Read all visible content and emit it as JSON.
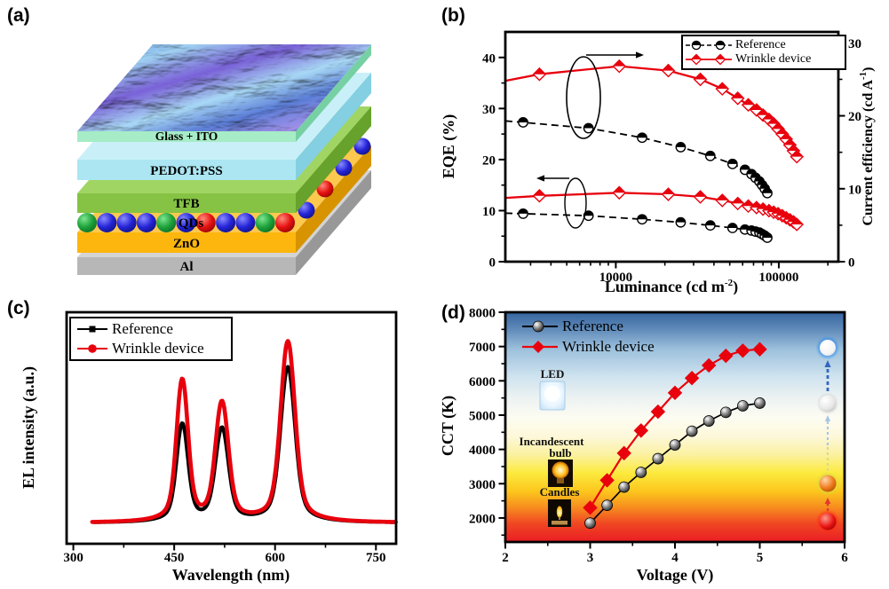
{
  "figure": {
    "background": "#ffffff",
    "accent_red": "#e8000d"
  },
  "panel_labels": {
    "a": "(a)",
    "b": "(b)",
    "c": "(c)",
    "d": "(d)"
  },
  "panel_a": {
    "name": "device-structure-stack",
    "top_texture": "wrinkled AFM surface",
    "layers": [
      {
        "label": "Glass + ITO",
        "face": "#a6ecc6",
        "side": "#77d0a4"
      },
      {
        "label": "PEDOT:PSS",
        "face": "#abe6f2",
        "side": "#84cfe2",
        "top": "#c9f0f8"
      },
      {
        "label": "TFB",
        "face": "#86c344",
        "side": "#66a22c",
        "top": "#a0d563"
      },
      {
        "label": "QDs"
      },
      {
        "label": "ZnO",
        "face": "#fdb60d",
        "side": "#d79300",
        "top": "#fdc84e"
      },
      {
        "label": "Al",
        "face": "#b7b7b7",
        "side": "#989898",
        "top": "#d4d4d4"
      }
    ],
    "qd_front": [
      "green",
      "blue",
      "blue",
      "blue",
      "green",
      "blue",
      "red",
      "blue",
      "blue",
      "green",
      "red"
    ],
    "qd_side": [
      "blue",
      "red",
      "blue",
      "blue"
    ]
  },
  "chart_data": [
    {
      "id": "b",
      "type": "line",
      "x_scale": "log",
      "xlabel": {
        "pre": "Luminance (cd m",
        "sup": "-2",
        "post": ")"
      },
      "ylabel_left": "EQE (%)",
      "ylabel_right": {
        "pre": "Current efficiency (cd A",
        "sup": "-1",
        "post": ")"
      },
      "xlim": [
        2100,
        232000
      ],
      "x_major_ticks": [
        10000,
        100000
      ],
      "x_major_tick_labels": [
        "10000",
        "100000"
      ],
      "ylim_left": [
        0,
        45
      ],
      "y_ticks_left": [
        0,
        10,
        20,
        30,
        40
      ],
      "ylim_right": [
        0,
        31.5
      ],
      "y_ticks_right": [
        0,
        10,
        20,
        30
      ],
      "legend": [
        {
          "label": "Reference",
          "color": "#000000",
          "line": "dashed",
          "marker": "half-filled-circle"
        },
        {
          "label": "Wrinkle device",
          "color": "#e8000d",
          "line": "solid",
          "marker": "half-filled-diamond"
        }
      ],
      "series": [
        {
          "name": "Reference EQE",
          "axis": "left",
          "color": "#000000",
          "line": "dashed",
          "marker": "circle",
          "lead": true,
          "x": [
            2100,
            2700,
            6800,
            14500,
            25000,
            38000,
            52000,
            62000,
            68000,
            72000,
            76000,
            79000,
            82000,
            85000
          ],
          "y": [
            9.5,
            9.4,
            9.0,
            8.3,
            7.7,
            7.1,
            6.6,
            6.3,
            6.1,
            5.9,
            5.7,
            5.4,
            5.1,
            4.7
          ]
        },
        {
          "name": "Reference current efficiency",
          "axis": "right",
          "color": "#000000",
          "line": "dashed",
          "marker": "circle",
          "lead": true,
          "x": [
            2100,
            2700,
            6800,
            14500,
            25000,
            38000,
            52000,
            62000,
            68000,
            72000,
            76000,
            79000,
            82000,
            85000
          ],
          "y": [
            19.3,
            19.1,
            18.3,
            17.0,
            15.7,
            14.5,
            13.4,
            12.6,
            12.0,
            11.5,
            11.0,
            10.5,
            10.0,
            9.4
          ]
        },
        {
          "name": "Wrinkle device EQE",
          "axis": "left",
          "color": "#e8000d",
          "line": "solid",
          "marker": "diamond",
          "lead": true,
          "x": [
            2100,
            3400,
            10500,
            21000,
            33000,
            45000,
            56000,
            65000,
            73000,
            80000,
            87000,
            93000,
            99000,
            105000,
            111000,
            117000,
            123000,
            129000
          ],
          "y": [
            12.5,
            12.9,
            13.5,
            13.2,
            12.7,
            12.0,
            11.4,
            10.9,
            10.6,
            10.3,
            10.0,
            9.7,
            9.4,
            9.0,
            8.6,
            8.2,
            7.8,
            7.3
          ]
        },
        {
          "name": "Wrinkle device current efficiency",
          "axis": "right",
          "color": "#e8000d",
          "line": "solid",
          "marker": "diamond",
          "lead": true,
          "x": [
            2100,
            3400,
            10500,
            21000,
            33000,
            45000,
            56000,
            65000,
            73000,
            80000,
            87000,
            93000,
            99000,
            105000,
            111000,
            117000,
            123000,
            129000
          ],
          "y": [
            24.8,
            25.7,
            26.8,
            26.2,
            25.0,
            23.7,
            22.4,
            21.5,
            20.8,
            20.1,
            19.5,
            18.9,
            18.2,
            17.5,
            16.8,
            16.0,
            15.2,
            14.4
          ]
        }
      ]
    },
    {
      "id": "c",
      "type": "line",
      "xlabel": "Wavelength (nm)",
      "ylabel": "EL intensity (a.u.)",
      "xlim": [
        290,
        780
      ],
      "x_major_ticks": [
        300,
        450,
        600,
        750
      ],
      "x_minor_ticks": [
        375,
        525,
        675
      ],
      "legend": [
        {
          "label": "Reference",
          "color": "#000000",
          "marker": "square"
        },
        {
          "label": "Wrinkle device",
          "color": "#e8000d",
          "marker": "circle"
        }
      ],
      "peak_centers_nm": [
        462,
        521,
        619
      ],
      "peak_sigma_nm": [
        8,
        9,
        10
      ],
      "series": [
        {
          "name": "Reference",
          "color": "#000000",
          "baseline": 0.09,
          "peak_heights": [
            0.42,
            0.4,
            0.67
          ],
          "x_start": 331
        },
        {
          "name": "Wrinkle device",
          "color": "#e8000d",
          "baseline": 0.09,
          "peak_heights": [
            0.61,
            0.51,
            0.78
          ],
          "x_start": 328
        }
      ]
    },
    {
      "id": "d",
      "type": "scatter-line",
      "xlabel": "Voltage (V)",
      "ylabel": "CCT (K)",
      "xlim": [
        2,
        6
      ],
      "x_ticks": [
        2,
        3,
        4,
        5,
        6
      ],
      "ylim": [
        1300,
        8000
      ],
      "y_ticks": [
        2000,
        3000,
        4000,
        5000,
        6000,
        7000,
        8000
      ],
      "legend": [
        {
          "label": "Reference",
          "color": "#000000",
          "marker": "sphere"
        },
        {
          "label": "Wrinkle device",
          "color": "#e8000d",
          "marker": "diamond"
        }
      ],
      "series": [
        {
          "name": "Reference",
          "color": "#000000",
          "marker": "sphere",
          "x": [
            3.0,
            3.2,
            3.4,
            3.6,
            3.8,
            4.0,
            4.2,
            4.4,
            4.6,
            4.8,
            5.0
          ],
          "y": [
            1850,
            2370,
            2900,
            3330,
            3730,
            4130,
            4530,
            4830,
            5080,
            5270,
            5350
          ]
        },
        {
          "name": "Wrinkle device",
          "color": "#e8000d",
          "marker": "diamond",
          "x": [
            3.0,
            3.2,
            3.4,
            3.6,
            3.8,
            4.0,
            4.2,
            4.4,
            4.6,
            4.8,
            5.0
          ],
          "y": [
            2300,
            3100,
            3890,
            4550,
            5100,
            5650,
            6080,
            6450,
            6730,
            6880,
            6920
          ]
        }
      ],
      "annotations": {
        "led": "LED",
        "incandescent_line1": "Incandescent",
        "incandescent_line2": "bulb",
        "candles": "Candles"
      },
      "background_gradient": [
        {
          "offset": 0.0,
          "color": "#36649e"
        },
        {
          "offset": 0.07,
          "color": "#5d88b8"
        },
        {
          "offset": 0.16,
          "color": "#9cc0dc"
        },
        {
          "offset": 0.28,
          "color": "#cfe3ef"
        },
        {
          "offset": 0.38,
          "color": "#eef3f2"
        },
        {
          "offset": 0.46,
          "color": "#fdfcf2"
        },
        {
          "offset": 0.54,
          "color": "#fdf8da"
        },
        {
          "offset": 0.62,
          "color": "#fbf1a0"
        },
        {
          "offset": 0.7,
          "color": "#fcea3e"
        },
        {
          "offset": 0.78,
          "color": "#fcc61d"
        },
        {
          "offset": 0.85,
          "color": "#f78c1e"
        },
        {
          "offset": 0.92,
          "color": "#f04723"
        },
        {
          "offset": 1.0,
          "color": "#ea1c24"
        }
      ]
    }
  ]
}
